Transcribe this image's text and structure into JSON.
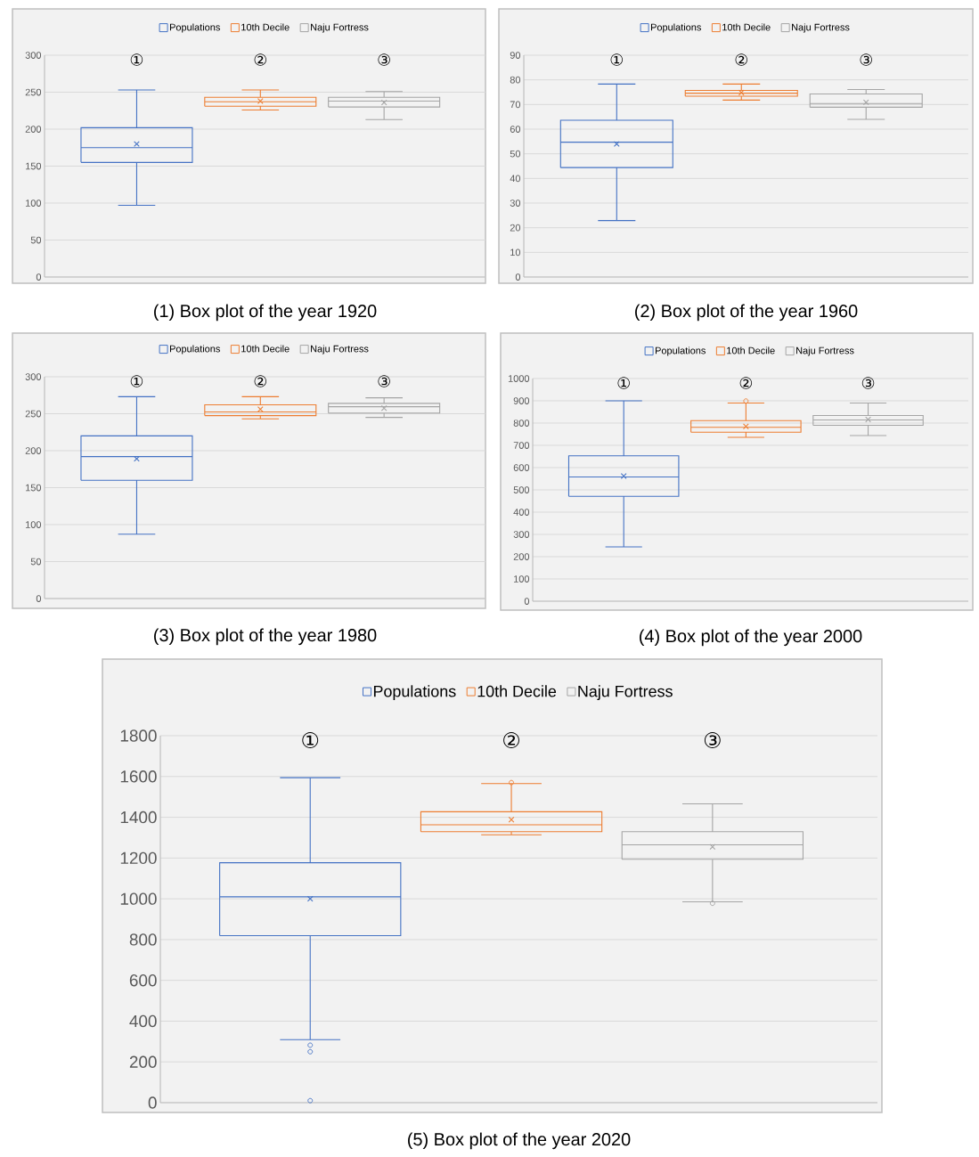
{
  "chart_data": [
    {
      "type": "box",
      "title": "(1) Box plot of the year 1920",
      "categories": [
        "①",
        "②",
        "③"
      ],
      "ylim": [
        0,
        300
      ],
      "yticks": [
        0,
        50,
        100,
        150,
        200,
        250,
        300
      ],
      "grid": "y",
      "legend": "top",
      "series": [
        {
          "name": "Populations",
          "color": "#4472c4",
          "boxes": [
            {
              "low": 97,
              "q1": 155,
              "median": 175,
              "q3": 202,
              "high": 253,
              "mean": 180
            },
            null,
            null
          ]
        },
        {
          "name": "10th Decile",
          "color": "#ed7d31",
          "boxes": [
            null,
            {
              "low": 226,
              "q1": 231,
              "median": 237,
              "q3": 243,
              "high": 253,
              "mean": 238
            },
            null
          ]
        },
        {
          "name": "Naju Fortress",
          "color": "#a5a5a5",
          "boxes": [
            null,
            null,
            {
              "low": 213,
              "q1": 230,
              "median": 238,
              "q3": 243,
              "high": 251,
              "mean": 236
            }
          ]
        }
      ]
    },
    {
      "type": "box",
      "title": "(2) Box plot of the year 1960",
      "categories": [
        "①",
        "②",
        "③"
      ],
      "ylim": [
        0,
        90
      ],
      "yticks": [
        0,
        10,
        20,
        30,
        40,
        50,
        60,
        70,
        80,
        90
      ],
      "grid": "y",
      "legend": "top",
      "series": [
        {
          "name": "Populations",
          "color": "#4472c4",
          "boxes": [
            {
              "low": 22.9,
              "q1": 44.4,
              "median": 54.7,
              "q3": 63.6,
              "high": 78.3,
              "mean": 54
            },
            null,
            null
          ]
        },
        {
          "name": "10th Decile",
          "color": "#ed7d31",
          "boxes": [
            null,
            {
              "low": 71.8,
              "q1": 73.4,
              "median": 74.6,
              "q3": 75.7,
              "high": 78.3,
              "mean": 74.8
            },
            null
          ]
        },
        {
          "name": "Naju Fortress",
          "color": "#a5a5a5",
          "boxes": [
            null,
            null,
            {
              "low": 64,
              "q1": 68.9,
              "median": 70.4,
              "q3": 74.3,
              "high": 76.1,
              "mean": 70.9
            }
          ]
        }
      ]
    },
    {
      "type": "box",
      "title": "(3) Box plot of the year 1980",
      "categories": [
        "①",
        "②",
        "③"
      ],
      "ylim": [
        0,
        300
      ],
      "yticks": [
        0,
        50,
        100,
        150,
        200,
        250,
        300
      ],
      "grid": "y",
      "legend": "top",
      "series": [
        {
          "name": "Populations",
          "color": "#4472c4",
          "boxes": [
            {
              "low": 87,
              "q1": 160,
              "median": 192,
              "q3": 220,
              "high": 273,
              "mean": 189
            },
            null,
            null
          ]
        },
        {
          "name": "10th Decile",
          "color": "#ed7d31",
          "boxes": [
            null,
            {
              "low": 243,
              "q1": 247.5,
              "median": 252.5,
              "q3": 262,
              "high": 273,
              "mean": 256
            },
            null
          ]
        },
        {
          "name": "Naju Fortress",
          "color": "#a5a5a5",
          "boxes": [
            null,
            null,
            {
              "low": 245,
              "q1": 251,
              "median": 259.5,
              "q3": 264,
              "high": 271.5,
              "mean": 257.5
            }
          ]
        }
      ]
    },
    {
      "type": "box",
      "title": "(4) Box plot of the year 2000",
      "categories": [
        "①",
        "②",
        "③"
      ],
      "ylim": [
        0,
        1000
      ],
      "yticks": [
        0,
        100,
        200,
        300,
        400,
        500,
        600,
        700,
        800,
        900,
        1000
      ],
      "grid": "y",
      "legend": "top",
      "series": [
        {
          "name": "Populations",
          "color": "#4472c4",
          "boxes": [
            {
              "low": 244,
              "q1": 471,
              "median": 558,
              "q3": 653,
              "high": 900,
              "mean": 562
            },
            null,
            null
          ]
        },
        {
          "name": "10th Decile",
          "color": "#ed7d31",
          "boxes": [
            null,
            {
              "low": 736,
              "q1": 759,
              "median": 781,
              "q3": 811,
              "high": 890,
              "mean": 785,
              "outliers": [
                899
              ]
            },
            null
          ]
        },
        {
          "name": "Naju Fortress",
          "color": "#a5a5a5",
          "boxes": [
            null,
            null,
            {
              "low": 744,
              "q1": 790,
              "median": 814,
              "q3": 834,
              "high": 890,
              "mean": 816
            }
          ]
        }
      ]
    },
    {
      "type": "box",
      "title": "(5) Box plot of the year 2020",
      "categories": [
        "①",
        "②",
        "③"
      ],
      "ylim": [
        0,
        1800
      ],
      "yticks": [
        0,
        200,
        400,
        600,
        800,
        1000,
        1200,
        1400,
        1600,
        1800
      ],
      "grid": "y",
      "legend": "top",
      "series": [
        {
          "name": "Populations",
          "color": "#4472c4",
          "boxes": [
            {
              "low": 309,
              "q1": 819,
              "median": 1010,
              "q3": 1177,
              "high": 1594,
              "mean": 1000,
              "outliers": [
                282,
                250,
                10
              ]
            },
            null,
            null
          ]
        },
        {
          "name": "10th Decile",
          "color": "#ed7d31",
          "boxes": [
            null,
            {
              "low": 1314,
              "q1": 1329,
              "median": 1363,
              "q3": 1427,
              "high": 1565,
              "mean": 1388,
              "outliers": [
                1570
              ]
            },
            null
          ]
        },
        {
          "name": "Naju Fortress",
          "color": "#a5a5a5",
          "boxes": [
            null,
            null,
            {
              "low": 985,
              "q1": 1194,
              "median": 1265,
              "q3": 1329,
              "high": 1466,
              "mean": 1255,
              "outliers": [
                978
              ]
            }
          ]
        }
      ]
    }
  ]
}
